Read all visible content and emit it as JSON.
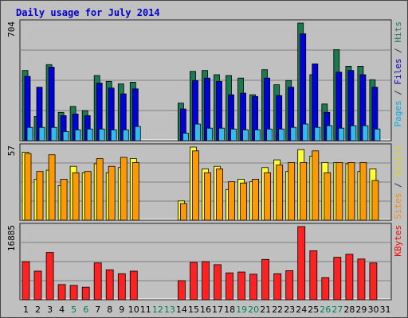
{
  "chart_data": {
    "type": "bar",
    "title": "Daily usage for July 2014",
    "categories": [
      "1",
      "2",
      "3",
      "4",
      "5",
      "6",
      "7",
      "8",
      "9",
      "10",
      "11",
      "12",
      "13",
      "14",
      "15",
      "16",
      "17",
      "18",
      "19",
      "20",
      "21",
      "22",
      "23",
      "24",
      "25",
      "26",
      "27",
      "28",
      "29",
      "30",
      "31"
    ],
    "weekend_days": [
      "5",
      "6",
      "12",
      "13",
      "19",
      "20",
      "26",
      "27"
    ],
    "panels": [
      {
        "id": "top",
        "y_max_label": "704",
        "ylim": [
          0,
          704
        ],
        "legend": [
          {
            "text": "Pages",
            "color": "#00aaee"
          },
          {
            "text": " / ",
            "color": "#333333"
          },
          {
            "text": "Files",
            "color": "#0000cc"
          },
          {
            "text": " / ",
            "color": "#333333"
          },
          {
            "text": "Hits",
            "color": "#1a7a50"
          }
        ],
        "series": [
          {
            "name": "Hits",
            "color": "#1a7a50",
            "values": [
              420,
              145,
              455,
              170,
              205,
              180,
              390,
              355,
              340,
              350,
              0,
              0,
              0,
              225,
              415,
              420,
              395,
              390,
              375,
              275,
              425,
              335,
              360,
              704,
              395,
              220,
              545,
              445,
              445,
              365,
              0
            ]
          },
          {
            "name": "Files",
            "color": "#0000dd",
            "values": [
              385,
              320,
              440,
              150,
              160,
              150,
              345,
              315,
              280,
              310,
              0,
              0,
              0,
              190,
              360,
              375,
              355,
              275,
              285,
              265,
              375,
              270,
              320,
              640,
              460,
              170,
              410,
              420,
              395,
              320,
              0
            ]
          },
          {
            "name": "Pages",
            "color": "#33bbee",
            "values": [
              80,
              80,
              80,
              55,
              65,
              70,
              70,
              65,
              65,
              85,
              0,
              0,
              0,
              45,
              100,
              75,
              75,
              70,
              65,
              65,
              70,
              70,
              80,
              100,
              80,
              90,
              75,
              90,
              90,
              70,
              0
            ]
          }
        ]
      },
      {
        "id": "mid",
        "y_max_label": "57",
        "ylim": [
          0,
          57
        ],
        "legend": [
          {
            "text": "Sites",
            "color": "#ff8800"
          },
          {
            "text": " / ",
            "color": "#333333"
          },
          {
            "text": "Visits",
            "color": "#dddd00"
          }
        ],
        "series": [
          {
            "name": "Visits",
            "color": "#ffff33",
            "values": [
              53,
              32,
              39,
              27,
              42,
              37,
              44,
              37,
              41,
              48,
              0,
              0,
              0,
              15,
              57,
              40,
              42,
              24,
              32,
              30,
              41,
              47,
              38,
              55,
              50,
              45,
              45,
              44,
              38,
              40,
              0
            ]
          },
          {
            "name": "Sites",
            "color": "#ff9900",
            "values": [
              52,
              38,
              51,
              32,
              37,
              38,
              48,
              42,
              49,
              45,
              0,
              0,
              0,
              13,
              54,
              37,
              40,
              30,
              29,
              32,
              37,
              43,
              45,
              45,
              54,
              37,
              45,
              45,
              45,
              31,
              0
            ]
          }
        ]
      },
      {
        "id": "bot",
        "y_max_label": "16885",
        "ylim": [
          0,
          16885
        ],
        "legend": [
          {
            "text": "KBytes",
            "color": "#ff0000"
          }
        ],
        "series": [
          {
            "name": "KBytes",
            "color": "#ff2222",
            "values": [
              8800,
              6600,
              10900,
              3500,
              3300,
              2900,
              8500,
              6900,
              6000,
              6600,
              0,
              0,
              0,
              4400,
              8600,
              8800,
              8100,
              6200,
              6400,
              5900,
              9300,
              6000,
              6700,
              16885,
              11300,
              5100,
              9800,
              10500,
              9400,
              8500,
              0
            ]
          }
        ]
      }
    ]
  }
}
